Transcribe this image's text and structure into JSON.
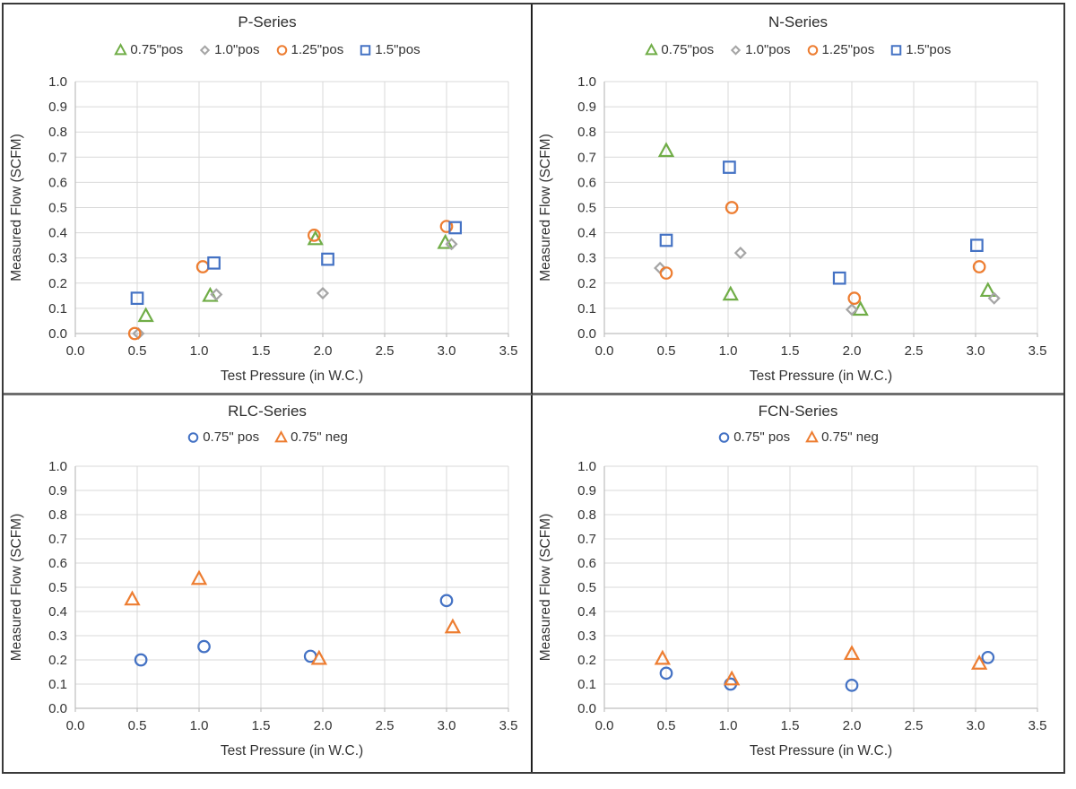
{
  "figure": {
    "description": "Measured leakage flow vs test pressure for four damper series",
    "colors": {
      "green": "#70AD47",
      "gray": "#A5A5A5",
      "orange": "#ED7D31",
      "blue": "#4472C4",
      "gridline": "#D9D9D9",
      "axis_line": "#BFBFBF",
      "text": "#333333"
    }
  },
  "chart_data": [
    {
      "id": "p-series",
      "type": "scatter",
      "title": "P-Series",
      "xlabel": "Test Pressure (in W.C.)",
      "ylabel": "Measured Flow (SCFM)",
      "xlim": [
        0.0,
        3.5
      ],
      "xtick_step": 0.5,
      "ylim": [
        0.0,
        1.0
      ],
      "ytick_step": 0.1,
      "grid": true,
      "legend_position": "top",
      "series": [
        {
          "name": "0.75\"pos",
          "marker": "triangle",
          "color": "#70AD47",
          "points": [
            [
              0.57,
              0.07
            ],
            [
              1.09,
              0.15
            ],
            [
              1.94,
              0.375
            ],
            [
              2.99,
              0.36
            ]
          ]
        },
        {
          "name": "1.0\"pos",
          "marker": "diamond",
          "color": "#A5A5A5",
          "points": [
            [
              0.51,
              0.0
            ],
            [
              1.14,
              0.155
            ],
            [
              2.0,
              0.16
            ],
            [
              3.04,
              0.355
            ]
          ]
        },
        {
          "name": "1.25\"pos",
          "marker": "circle",
          "color": "#ED7D31",
          "points": [
            [
              0.48,
              0.0
            ],
            [
              1.03,
              0.265
            ],
            [
              1.93,
              0.39
            ],
            [
              3.0,
              0.425
            ]
          ]
        },
        {
          "name": "1.5\"pos",
          "marker": "square",
          "color": "#4472C4",
          "points": [
            [
              0.5,
              0.14
            ],
            [
              1.12,
              0.28
            ],
            [
              2.04,
              0.295
            ],
            [
              3.07,
              0.42
            ]
          ]
        }
      ]
    },
    {
      "id": "n-series",
      "type": "scatter",
      "title": "N-Series",
      "xlabel": "Test Pressure (in W.C.)",
      "ylabel": "Measured Flow (SCFM)",
      "xlim": [
        0.0,
        3.5
      ],
      "xtick_step": 0.5,
      "ylim": [
        0.0,
        1.0
      ],
      "ytick_step": 0.1,
      "grid": true,
      "legend_position": "top",
      "series": [
        {
          "name": "0.75\"pos",
          "marker": "triangle",
          "color": "#70AD47",
          "points": [
            [
              0.5,
              0.725
            ],
            [
              1.02,
              0.155
            ],
            [
              2.07,
              0.095
            ],
            [
              3.1,
              0.17
            ]
          ]
        },
        {
          "name": "1.0\"pos",
          "marker": "diamond",
          "color": "#A5A5A5",
          "points": [
            [
              0.45,
              0.26
            ],
            [
              1.1,
              0.32
            ],
            [
              2.0,
              0.095
            ],
            [
              3.15,
              0.14
            ]
          ]
        },
        {
          "name": "1.25\"pos",
          "marker": "circle",
          "color": "#ED7D31",
          "points": [
            [
              0.5,
              0.24
            ],
            [
              1.03,
              0.5
            ],
            [
              2.02,
              0.14
            ],
            [
              3.03,
              0.265
            ]
          ]
        },
        {
          "name": "1.5\"pos",
          "marker": "square",
          "color": "#4472C4",
          "points": [
            [
              0.5,
              0.37
            ],
            [
              1.01,
              0.66
            ],
            [
              1.9,
              0.22
            ],
            [
              3.01,
              0.35
            ]
          ]
        }
      ]
    },
    {
      "id": "rlc-series",
      "type": "scatter",
      "title": "RLC-Series",
      "xlabel": "Test Pressure (in W.C.)",
      "ylabel": "Measured Flow (SCFM)",
      "xlim": [
        0.0,
        3.5
      ],
      "xtick_step": 0.5,
      "ylim": [
        0.0,
        1.0
      ],
      "ytick_step": 0.1,
      "grid": true,
      "legend_position": "top",
      "series": [
        {
          "name": "0.75\" pos",
          "marker": "circle",
          "color": "#4472C4",
          "points": [
            [
              0.53,
              0.2
            ],
            [
              1.04,
              0.255
            ],
            [
              1.9,
              0.215
            ],
            [
              3.0,
              0.445
            ]
          ]
        },
        {
          "name": "0.75\" neg",
          "marker": "triangle",
          "color": "#ED7D31",
          "points": [
            [
              0.46,
              0.45
            ],
            [
              1.0,
              0.535
            ],
            [
              1.97,
              0.205
            ],
            [
              3.05,
              0.335
            ]
          ]
        }
      ]
    },
    {
      "id": "fcn-series",
      "type": "scatter",
      "title": "FCN-Series",
      "xlabel": "Test Pressure (in W.C.)",
      "ylabel": "Measured Flow (SCFM)",
      "xlim": [
        0.0,
        3.5
      ],
      "xtick_step": 0.5,
      "ylim": [
        0.0,
        1.0
      ],
      "ytick_step": 0.1,
      "grid": true,
      "legend_position": "top",
      "series": [
        {
          "name": "0.75\" pos",
          "marker": "circle",
          "color": "#4472C4",
          "points": [
            [
              0.5,
              0.145
            ],
            [
              1.02,
              0.1
            ],
            [
              2.0,
              0.095
            ],
            [
              3.1,
              0.21
            ]
          ]
        },
        {
          "name": "0.75\" neg",
          "marker": "triangle",
          "color": "#ED7D31",
          "points": [
            [
              0.47,
              0.205
            ],
            [
              1.03,
              0.12
            ],
            [
              2.0,
              0.225
            ],
            [
              3.03,
              0.185
            ]
          ]
        }
      ]
    }
  ]
}
